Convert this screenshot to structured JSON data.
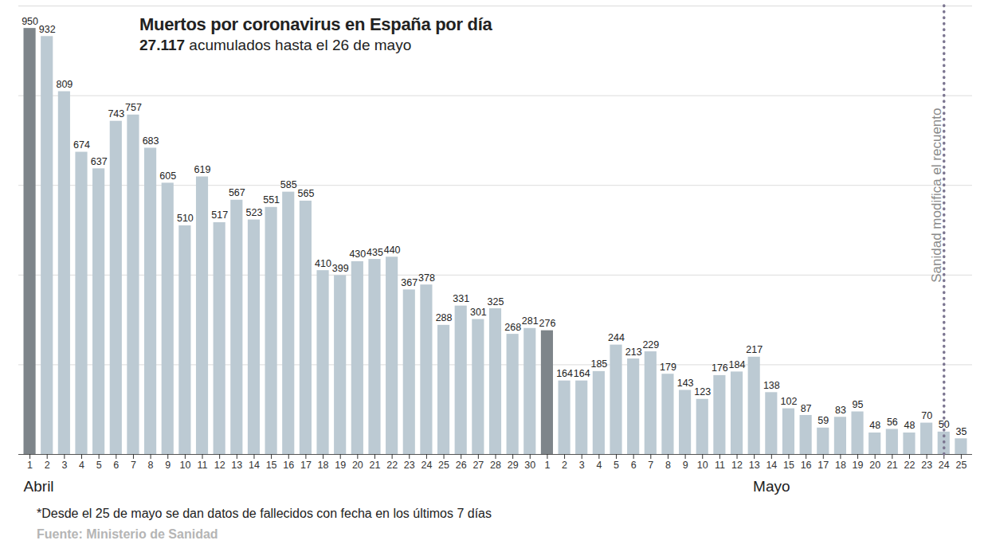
{
  "chart_data": {
    "type": "bar",
    "title": "Muertos por coronavirus en España por día",
    "subtitle": "27.117 acumulados hasta el 26 de mayo",
    "categories": [
      "1",
      "2",
      "3",
      "4",
      "5",
      "6",
      "7",
      "8",
      "9",
      "10",
      "11",
      "12",
      "13",
      "14",
      "15",
      "16",
      "17",
      "18",
      "19",
      "20",
      "21",
      "22",
      "23",
      "24",
      "25",
      "26",
      "27",
      "28",
      "29",
      "30",
      "1",
      "2",
      "3",
      "4",
      "5",
      "6",
      "7",
      "8",
      "9",
      "10",
      "11",
      "12",
      "13",
      "14",
      "15",
      "16",
      "17",
      "18",
      "19",
      "20",
      "21",
      "22",
      "23",
      "24",
      "25"
    ],
    "values": [
      950,
      932,
      809,
      674,
      637,
      743,
      757,
      683,
      605,
      510,
      619,
      517,
      567,
      523,
      551,
      585,
      565,
      410,
      399,
      430,
      435,
      440,
      367,
      378,
      288,
      331,
      301,
      325,
      268,
      281,
      276,
      164,
      164,
      185,
      244,
      213,
      229,
      179,
      143,
      123,
      176,
      184,
      217,
      138,
      102,
      87,
      59,
      83,
      95,
      48,
      56,
      48,
      70,
      50,
      35
    ],
    "colors": [
      "#7e858a",
      "#bccad3",
      "#bccad3",
      "#bccad3",
      "#bccad3",
      "#bccad3",
      "#bccad3",
      "#bccad3",
      "#bccad3",
      "#bccad3",
      "#bccad3",
      "#bccad3",
      "#bccad3",
      "#bccad3",
      "#bccad3",
      "#bccad3",
      "#bccad3",
      "#bccad3",
      "#bccad3",
      "#bccad3",
      "#bccad3",
      "#bccad3",
      "#bccad3",
      "#bccad3",
      "#bccad3",
      "#bccad3",
      "#bccad3",
      "#bccad3",
      "#bccad3",
      "#bccad3",
      "#7e858a",
      "#bccad3",
      "#bccad3",
      "#bccad3",
      "#bccad3",
      "#bccad3",
      "#bccad3",
      "#bccad3",
      "#bccad3",
      "#bccad3",
      "#bccad3",
      "#bccad3",
      "#bccad3",
      "#bccad3",
      "#bccad3",
      "#bccad3",
      "#bccad3",
      "#bccad3",
      "#bccad3",
      "#bccad3",
      "#bccad3",
      "#bccad3",
      "#bccad3",
      "#bccad3",
      "#bccad3"
    ],
    "ylim": [
      0,
      1000
    ],
    "yticks": [
      0,
      200,
      400,
      600,
      800,
      1000
    ],
    "grid": true,
    "tick_labels": "x",
    "data_labels": true,
    "x_groups": [
      {
        "label": "Abril",
        "start": 0
      },
      {
        "label": "Mayo",
        "start": 30
      }
    ],
    "annotations": [
      {
        "text": "Sanidad modifica el recuento",
        "x": 53
      }
    ],
    "footnote": "*Desde el 25 de mayo se dan datos de fallecidos con fecha en los últimos 7 días",
    "source": "Fuente: Ministerio de Sanidad"
  }
}
